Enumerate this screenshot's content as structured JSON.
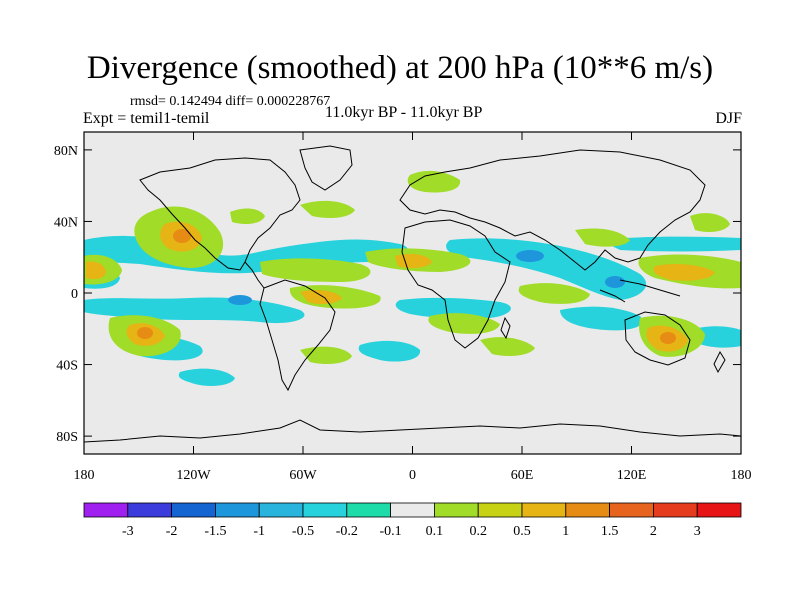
{
  "title": "Divergence (smoothed) at 200 hPa (10**6 m/s)",
  "stats": "rmsd= 0.142494 diff= 0.000228767",
  "experiment": "Expt = temil1-temil",
  "period": "11.0kyr BP - 11.0kyr BP",
  "season": "DJF",
  "lat_ticks": [
    "80N",
    "40N",
    "0",
    "40S",
    "80S"
  ],
  "lon_ticks": [
    "180",
    "120W",
    "60W",
    "0",
    "60E",
    "120E",
    "180"
  ],
  "colorbar": {
    "labels": [
      "-3",
      "-2",
      "-1.5",
      "-1",
      "-0.5",
      "-0.2",
      "-0.1",
      "0.1",
      "0.2",
      "0.5",
      "1",
      "1.5",
      "2",
      "3"
    ],
    "colors": [
      "#a020f0",
      "#3c3cdc",
      "#1464d2",
      "#1e96dc",
      "#28b4dc",
      "#28d2dc",
      "#1edcaa",
      "#eaeaea",
      "#a0dc28",
      "#c8d214",
      "#e6b414",
      "#e68c14",
      "#e6641e",
      "#e63c1e",
      "#e61414"
    ]
  },
  "colors": {
    "background": "#eaeaea",
    "border": "#000000"
  }
}
